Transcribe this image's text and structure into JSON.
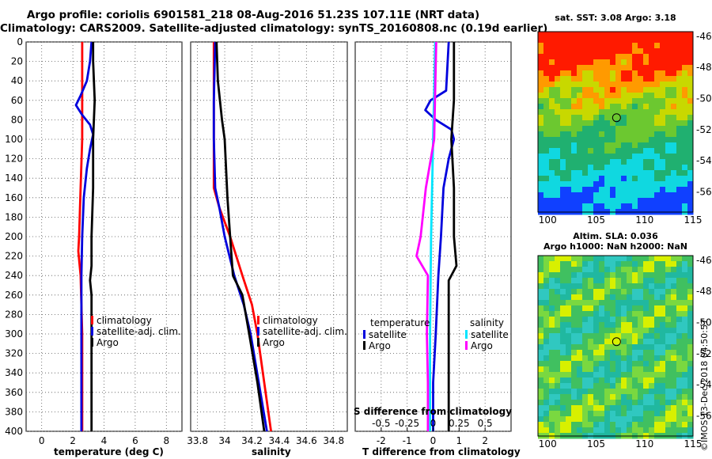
{
  "header": {
    "line1": "Argo profile: coriolis 6901581_218 08-Aug-2016 51.23S 107.11E (NRT data)",
    "line2": "Climatology: CARS2009. Satellite-adjusted climatology: synTS_20160808.nc (0.19d earlier)"
  },
  "colors": {
    "climatology": "#ff0000",
    "satellite": "#0000dd",
    "argo": "#000000",
    "satellite_s": "#00e5ff",
    "argo_s": "#ff00ff"
  },
  "chart_data": [
    {
      "type": "line",
      "name": "temperature",
      "xlabel": "temperature (deg C)",
      "ylabel": "",
      "xlim": [
        -1,
        9
      ],
      "ylim": [
        400,
        0
      ],
      "xticks": [
        0,
        2,
        4,
        6,
        8
      ],
      "yticks": [
        0,
        20,
        40,
        60,
        80,
        100,
        120,
        140,
        160,
        180,
        200,
        220,
        240,
        260,
        280,
        300,
        320,
        340,
        360,
        380,
        400
      ],
      "grid": true,
      "legend": {
        "position": "bottom-right",
        "entries": [
          "climatology",
          "satellite-adj. clim.",
          "Argo"
        ]
      },
      "series": [
        {
          "name": "climatology",
          "depth": [
            0,
            60,
            100,
            150,
            200,
            215,
            240,
            300,
            350,
            400
          ],
          "values": [
            2.6,
            2.6,
            2.6,
            2.5,
            2.4,
            2.35,
            2.5,
            2.6,
            2.6,
            2.6
          ]
        },
        {
          "name": "satellite-adj. clim.",
          "depth": [
            0,
            20,
            40,
            55,
            65,
            75,
            85,
            95,
            110,
            130,
            160,
            200,
            240,
            300,
            350,
            400
          ],
          "values": [
            3.2,
            3.1,
            2.9,
            2.5,
            2.2,
            2.6,
            3.1,
            3.3,
            3.1,
            2.9,
            2.7,
            2.6,
            2.55,
            2.55,
            2.55,
            2.55
          ]
        },
        {
          "name": "Argo",
          "depth": [
            0,
            20,
            60,
            100,
            150,
            200,
            230,
            245,
            260,
            300,
            350,
            400
          ],
          "values": [
            3.3,
            3.3,
            3.4,
            3.3,
            3.3,
            3.2,
            3.2,
            3.1,
            3.2,
            3.2,
            3.2,
            3.2
          ]
        }
      ]
    },
    {
      "type": "line",
      "name": "salinity",
      "xlabel": "salinity",
      "xlim": [
        33.75,
        34.9
      ],
      "ylim": [
        400,
        0
      ],
      "xticks": [
        33.8,
        34,
        34.2,
        34.4,
        34.6,
        34.8
      ],
      "xticklabels": [
        "33.8",
        "34",
        "34.2",
        "34.4",
        "34.6",
        "34.8"
      ],
      "grid": true,
      "legend": {
        "position": "bottom-right",
        "entries": [
          "climatology",
          "satellite-adj. clim.",
          "Argo"
        ]
      },
      "series": [
        {
          "name": "climatology",
          "depth": [
            0,
            60,
            100,
            150,
            170,
            200,
            240,
            270,
            300,
            350,
            400
          ],
          "values": [
            33.92,
            33.92,
            33.92,
            33.92,
            33.96,
            34.04,
            34.13,
            34.2,
            34.24,
            34.29,
            34.34
          ]
        },
        {
          "name": "satellite-adj. clim.",
          "depth": [
            0,
            60,
            100,
            150,
            170,
            200,
            240,
            270,
            300,
            350,
            400
          ],
          "values": [
            33.93,
            33.92,
            33.92,
            33.93,
            33.96,
            34.0,
            34.07,
            34.14,
            34.19,
            34.25,
            34.31
          ]
        },
        {
          "name": "Argo",
          "depth": [
            0,
            40,
            80,
            100,
            160,
            200,
            240,
            260,
            300,
            350,
            400
          ],
          "values": [
            33.94,
            33.95,
            33.98,
            34.0,
            34.02,
            34.04,
            34.06,
            34.13,
            34.18,
            34.24,
            34.29
          ]
        }
      ]
    },
    {
      "type": "line",
      "name": "differences",
      "xlabel": "T difference from climatology",
      "xlabel_top": "S difference from climatology",
      "xlim": [
        -3,
        3
      ],
      "ylim": [
        400,
        0
      ],
      "xticks": [
        -2,
        -1,
        0,
        1,
        2
      ],
      "top_ticks": [
        -0.5,
        -0.25,
        0,
        0.25,
        0.5
      ],
      "top_ticklabels": [
        "-0.5",
        "-0.25",
        "0",
        "0.25",
        "0.5"
      ],
      "grid": true,
      "legend_temperature": {
        "title": "temperature",
        "entries": [
          "satellite",
          "Argo"
        ]
      },
      "legend_salinity": {
        "title": "salinity",
        "entries": [
          "satellite",
          "Argo"
        ]
      },
      "series": [
        {
          "name": "temperature satellite",
          "depth": [
            0,
            50,
            60,
            70,
            80,
            90,
            100,
            120,
            150,
            200,
            240,
            300,
            350,
            400
          ],
          "values": [
            0.6,
            0.5,
            -0.1,
            -0.3,
            0.1,
            0.7,
            0.8,
            0.6,
            0.4,
            0.3,
            0.2,
            0.1,
            0.0,
            0.0
          ]
        },
        {
          "name": "temperature Argo",
          "depth": [
            0,
            20,
            60,
            100,
            150,
            200,
            230,
            245,
            260,
            300,
            350,
            400
          ],
          "values": [
            0.8,
            0.8,
            0.8,
            0.7,
            0.8,
            0.8,
            0.9,
            0.6,
            0.6,
            0.6,
            0.6,
            0.6
          ]
        },
        {
          "name": "salinity satellite",
          "depth": [
            0,
            100,
            200,
            300,
            400
          ],
          "values": [
            0.02,
            0.0,
            -0.02,
            -0.03,
            -0.03
          ]
        },
        {
          "name": "salinity Argo",
          "depth": [
            0,
            100,
            150,
            200,
            220,
            240,
            300,
            350,
            400
          ],
          "values": [
            0.03,
            0.01,
            -0.07,
            -0.12,
            -0.16,
            -0.05,
            -0.06,
            -0.05,
            -0.05
          ]
        }
      ]
    },
    {
      "type": "heatmap",
      "name": "sst_map",
      "title": "sat. SST: 3.08 Argo: 3.18",
      "xlim": [
        99,
        115
      ],
      "ylim": [
        -57.3,
        -45.7
      ],
      "xticks": [
        100,
        105,
        110,
        115
      ],
      "yticks": [
        -46,
        -48,
        -50,
        -52,
        -54,
        -56
      ],
      "marker": {
        "lon": 107.11,
        "lat": -51.23
      }
    },
    {
      "type": "heatmap",
      "name": "sla_map",
      "title": "Altim. SLA: 0.036",
      "subtitle": "Argo h1000: NaN h2000: NaN",
      "xlim": [
        99,
        115
      ],
      "ylim": [
        -57.3,
        -45.7
      ],
      "xticks": [
        100,
        105,
        110,
        115
      ],
      "yticks": [
        -46,
        -48,
        -50,
        -52,
        -54,
        -56
      ],
      "marker": {
        "lon": 107.11,
        "lat": -51.23
      }
    }
  ],
  "stamp": "©IMOS 13-Dec-2018 04:50:57"
}
